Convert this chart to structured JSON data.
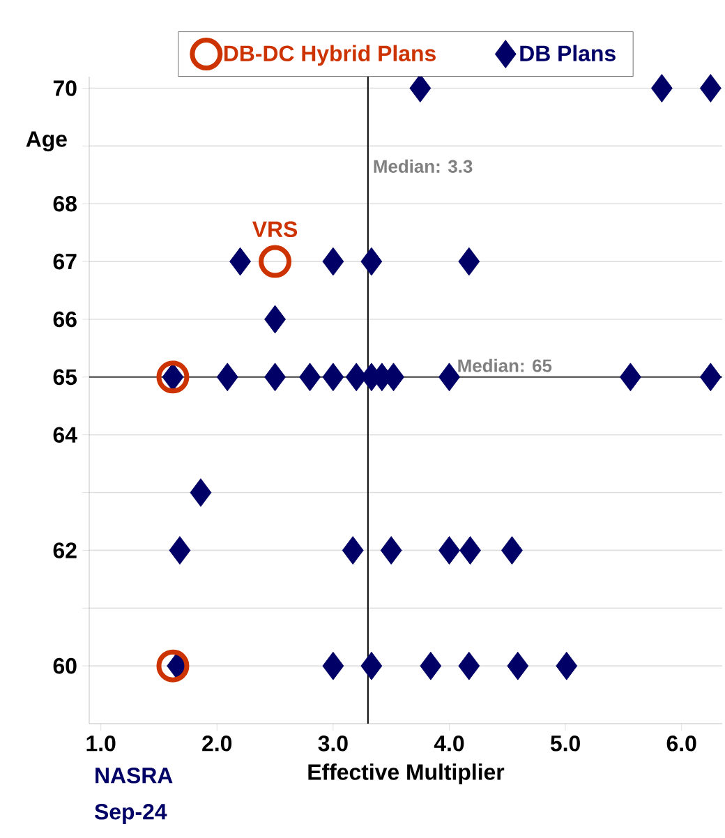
{
  "chart_data": {
    "type": "scatter",
    "xlabel": "Effective Multiplier",
    "ylabel": "Age",
    "xlim": [
      0.9,
      6.35
    ],
    "ylim": [
      59,
      70.2
    ],
    "xticks": [
      {
        "value": 1,
        "label": "1.0"
      },
      {
        "value": 2,
        "label": "2.0"
      },
      {
        "value": 3,
        "label": "3.0"
      },
      {
        "value": 4,
        "label": "4.0"
      },
      {
        "value": 5,
        "label": "5.0"
      },
      {
        "value": 6,
        "label": "6.0"
      }
    ],
    "yticks": [
      60,
      {
        "value": 61,
        "label": null
      },
      62,
      {
        "value": 63,
        "label": null
      },
      64,
      65,
      66,
      67,
      68,
      {
        "value": 69,
        "label": null
      },
      70
    ],
    "grid": "y",
    "legend": "top",
    "series": [
      {
        "name": "DB-DC Hybrid Plans",
        "color": "#cc3300",
        "marker": "circle",
        "x": [
          2.5,
          1.62,
          1.62
        ],
        "values": [
          67,
          65,
          60
        ]
      },
      {
        "name": "DB Plans",
        "color": "#000066",
        "marker": "diamond",
        "x": [
          3.75,
          5.83,
          6.25,
          2.2,
          3.0,
          3.33,
          4.17,
          2.5,
          1.62,
          2.09,
          2.5,
          2.8,
          3.0,
          3.2,
          3.33,
          3.42,
          3.52,
          4.0,
          5.56,
          6.25,
          1.86,
          1.68,
          3.17,
          3.5,
          4.0,
          4.18,
          4.54,
          1.66,
          3.0,
          3.33,
          3.84,
          4.17,
          4.59,
          5.01
        ],
        "values": [
          70,
          70,
          70,
          67,
          67,
          67,
          67,
          66,
          65,
          65,
          65,
          65,
          65,
          65,
          65,
          65,
          65,
          65,
          65,
          65,
          63,
          62,
          62,
          62,
          62,
          62,
          62,
          60,
          60,
          60,
          60,
          60,
          60,
          60
        ]
      }
    ],
    "ref_lines": [
      {
        "axis": "x",
        "value": 3.3,
        "label": "Median: 3.3",
        "color": "#000000"
      },
      {
        "axis": "y",
        "value": 65,
        "label": "Median: 65",
        "color": "#404040"
      }
    ],
    "annotations": [
      {
        "text": "VRS",
        "x": 2.5,
        "y": 67
      },
      "NASRA",
      "Sep-24"
    ]
  }
}
